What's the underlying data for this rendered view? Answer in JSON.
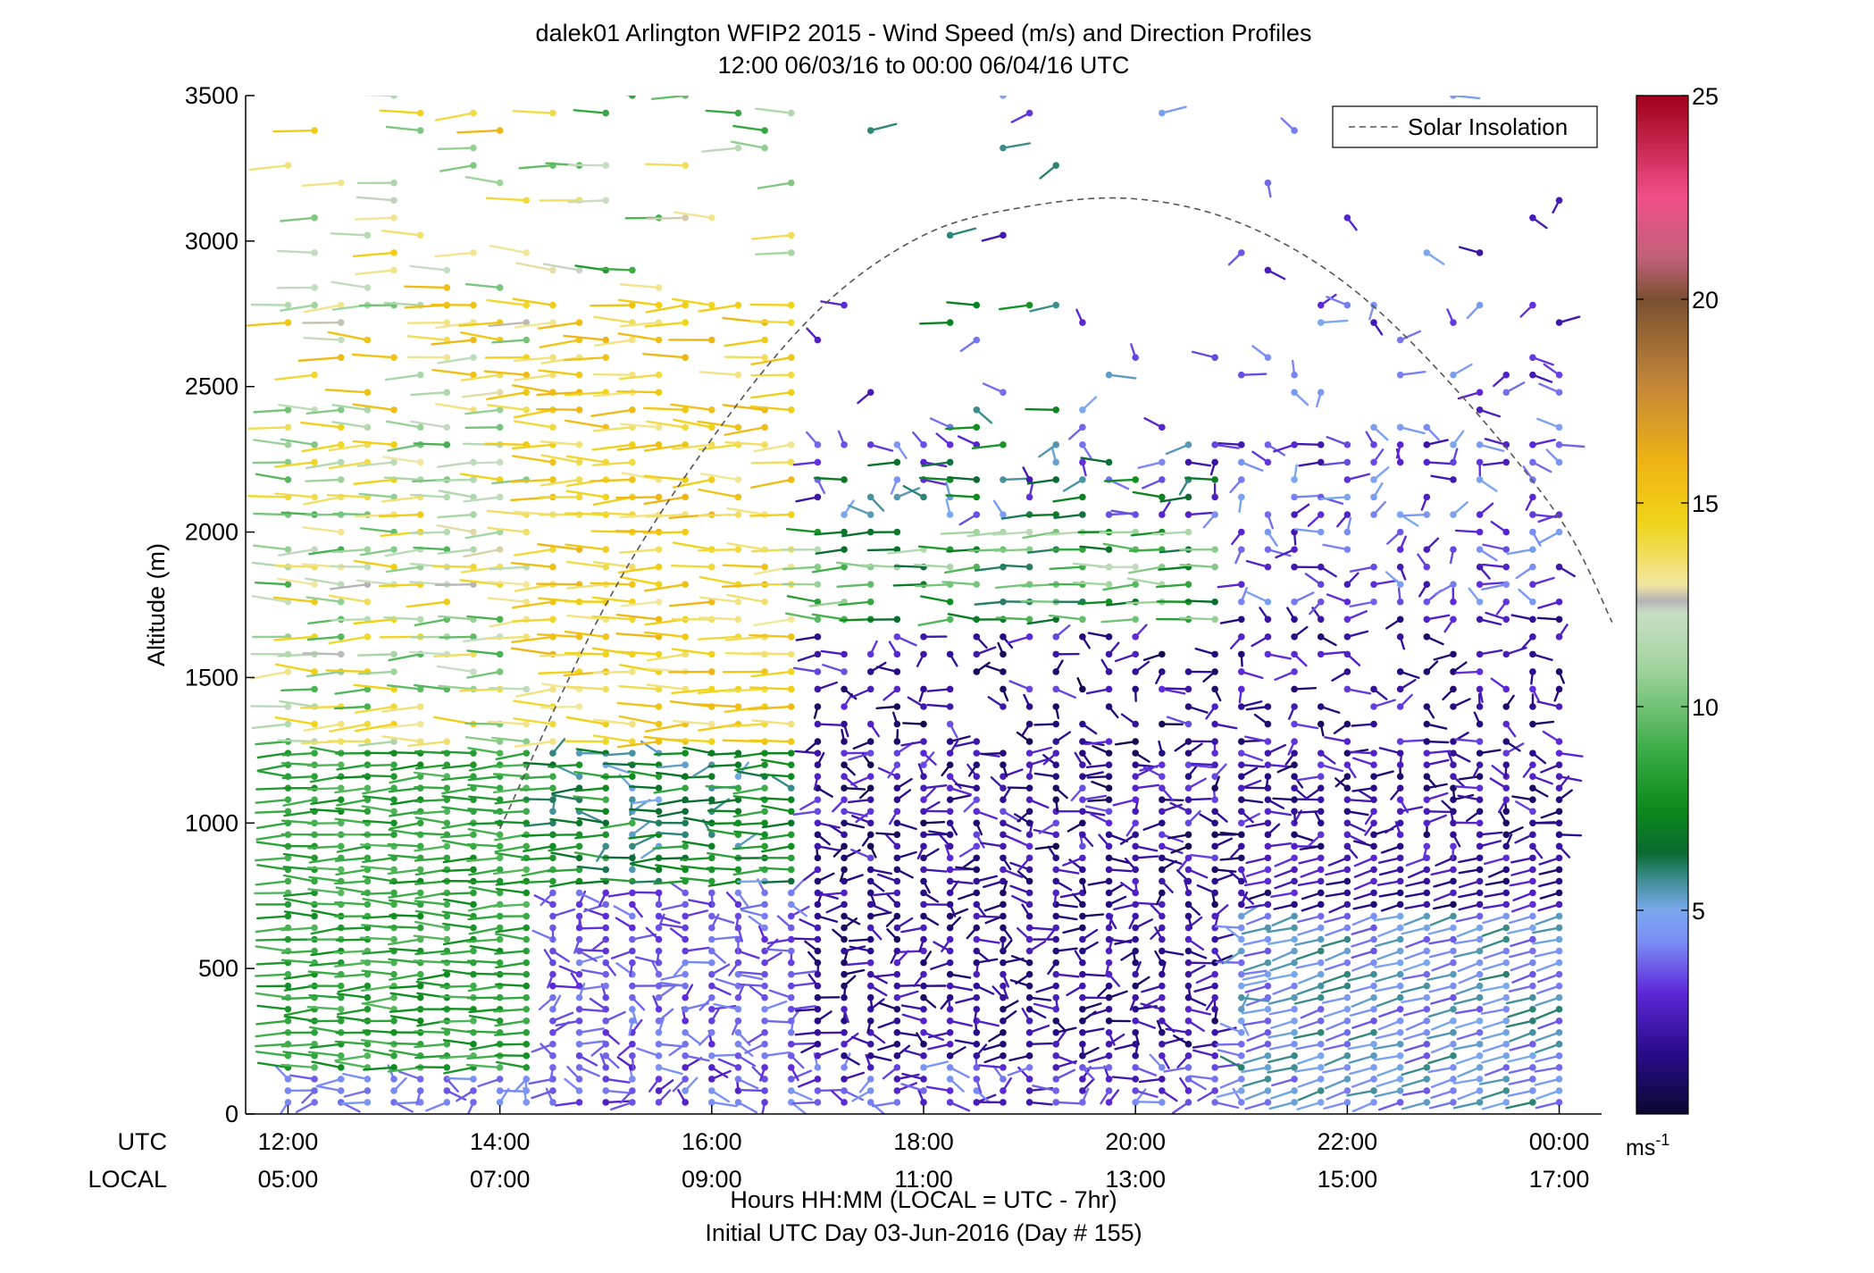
{
  "chart_data": {
    "type": "scatter",
    "title_line1": "dalek01 Arlington WFIP2 2015 - Wind Speed (m/s) and Direction Profiles",
    "title_line2": "12:00 06/03/16 to 00:00 06/04/16  UTC",
    "ylabel": "Altitude (m)",
    "ylim": [
      0,
      3500
    ],
    "yticks": [
      "0",
      "500",
      "1000",
      "1500",
      "2000",
      "2500",
      "3000",
      "3500"
    ],
    "x_row_label_utc": "UTC",
    "x_row_label_local": "LOCAL",
    "xlim_hours_utc": [
      11.6,
      24.4
    ],
    "utc_ticks": [
      {
        "hour": 12,
        "label": "12:00"
      },
      {
        "hour": 14,
        "label": "14:00"
      },
      {
        "hour": 16,
        "label": "16:00"
      },
      {
        "hour": 18,
        "label": "18:00"
      },
      {
        "hour": 20,
        "label": "20:00"
      },
      {
        "hour": 22,
        "label": "22:00"
      },
      {
        "hour": 24,
        "label": "00:00"
      }
    ],
    "local_ticks": [
      {
        "hour": 12,
        "label": "05:00"
      },
      {
        "hour": 14,
        "label": "07:00"
      },
      {
        "hour": 16,
        "label": "09:00"
      },
      {
        "hour": 18,
        "label": "11:00"
      },
      {
        "hour": 20,
        "label": "13:00"
      },
      {
        "hour": 22,
        "label": "15:00"
      },
      {
        "hour": 24,
        "label": "17:00"
      }
    ],
    "xlabel": "Hours HH:MM  (LOCAL = UTC - 7hr)",
    "footer": "Initial UTC Day 03-Jun-2016 (Day # 155)",
    "legend": {
      "label": "Solar Insolation",
      "position": "top-right",
      "style": "dashed"
    },
    "solar_insolation_curve": [
      {
        "hour": 14.0,
        "alt": 980
      },
      {
        "hour": 15.0,
        "alt": 1750
      },
      {
        "hour": 16.0,
        "alt": 2320
      },
      {
        "hour": 17.0,
        "alt": 2760
      },
      {
        "hour": 18.0,
        "alt": 3020
      },
      {
        "hour": 19.0,
        "alt": 3120
      },
      {
        "hour": 20.0,
        "alt": 3145
      },
      {
        "hour": 21.0,
        "alt": 3060
      },
      {
        "hour": 22.0,
        "alt": 2850
      },
      {
        "hour": 23.0,
        "alt": 2500
      },
      {
        "hour": 24.0,
        "alt": 2050
      },
      {
        "hour": 24.5,
        "alt": 1690
      }
    ],
    "colorbar": {
      "min": 0,
      "max": 25,
      "ticks": [
        "5",
        "10",
        "15",
        "20",
        "25"
      ],
      "unit": "ms",
      "unit_superscript": "-1",
      "colors": [
        {
          "v": 0,
          "c": "#0b0830"
        },
        {
          "v": 1.5,
          "c": "#2a0b8a"
        },
        {
          "v": 3,
          "c": "#5e28d8"
        },
        {
          "v": 4.2,
          "c": "#7a8cf5"
        },
        {
          "v": 5,
          "c": "#7aa9ee"
        },
        {
          "v": 5.8,
          "c": "#3a8c8c"
        },
        {
          "v": 6.4,
          "c": "#0a6a30"
        },
        {
          "v": 7.5,
          "c": "#0c8a1c"
        },
        {
          "v": 9,
          "c": "#3fae4a"
        },
        {
          "v": 11,
          "c": "#a3d5a0"
        },
        {
          "v": 12.3,
          "c": "#c8dec4"
        },
        {
          "v": 12.6,
          "c": "#b4b4b4"
        },
        {
          "v": 13,
          "c": "#f2e6a0"
        },
        {
          "v": 14.5,
          "c": "#f0d418"
        },
        {
          "v": 16,
          "c": "#efb414"
        },
        {
          "v": 18,
          "c": "#c0843a"
        },
        {
          "v": 20,
          "c": "#7a5030"
        },
        {
          "v": 21,
          "c": "#c06078"
        },
        {
          "v": 22.5,
          "c": "#f0508a"
        },
        {
          "v": 25,
          "c": "#a00018"
        }
      ]
    },
    "wind_profiles": {
      "description_of_encoding": "",
      "time_start_utc": 12.0,
      "time_end_utc": 24.0,
      "time_step_hours": 0.25,
      "altitude_min_m": 40,
      "altitude_max_m": 3500
    }
  }
}
